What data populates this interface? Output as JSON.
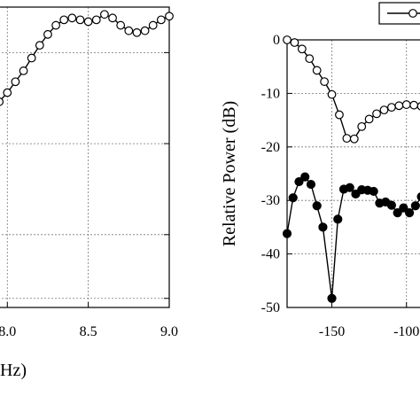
{
  "chart_data": [
    {
      "type": "line",
      "title": "",
      "xlabel": "Hz)",
      "ylabel": "",
      "xlim": [
        7.9,
        9.0
      ],
      "ylim": [
        -1.4,
        0.25
      ],
      "grid": true,
      "x_ticks": [
        8.0,
        8.5,
        9.0
      ],
      "x_tick_labels": [
        "8.0",
        "8.5",
        "9.0"
      ],
      "y_gridlines": [
        0,
        -0.5,
        -1,
        -1.35
      ],
      "series": [
        {
          "marker": "open-circle",
          "x": [
            7.9,
            7.95,
            8.0,
            8.05,
            8.1,
            8.15,
            8.2,
            8.25,
            8.3,
            8.35,
            8.4,
            8.45,
            8.5,
            8.55,
            8.6,
            8.65,
            8.7,
            8.75,
            8.8,
            8.85,
            8.9,
            8.95,
            9.0
          ],
          "y": [
            -0.3,
            -0.27,
            -0.22,
            -0.16,
            -0.1,
            -0.03,
            0.04,
            0.1,
            0.15,
            0.18,
            0.19,
            0.18,
            0.17,
            0.18,
            0.21,
            0.19,
            0.15,
            0.12,
            0.11,
            0.12,
            0.15,
            0.18,
            0.2
          ]
        }
      ]
    },
    {
      "type": "line",
      "title": "",
      "xlabel": "",
      "ylabel": "Relative Power (dB)",
      "xlim": [
        -180,
        -85
      ],
      "ylim": [
        -50,
        0
      ],
      "grid": true,
      "legend": "top-right",
      "x_ticks": [
        -150,
        -100
      ],
      "x_tick_labels": [
        "-150",
        "-100"
      ],
      "y_ticks": [
        0,
        -10,
        -20,
        -30,
        -40,
        -50
      ],
      "y_tick_labels": [
        "0",
        "-10",
        "-20",
        "-30",
        "-40",
        "-50"
      ],
      "series": [
        {
          "marker": "open-circle",
          "x": [
            -180,
            -175,
            -170,
            -165,
            -160,
            -155,
            -150,
            -145,
            -140,
            -135,
            -130,
            -125,
            -120,
            -115,
            -110,
            -105,
            -100,
            -95,
            -90,
            -85
          ],
          "y": [
            0,
            -0.5,
            -1.7,
            -3.5,
            -5.7,
            -7.8,
            -10.2,
            -14,
            -18.4,
            -18.5,
            -16.2,
            -14.8,
            -13.8,
            -13.1,
            -12.6,
            -12.3,
            -12.1,
            -12.2,
            -12.4,
            -12.5
          ]
        },
        {
          "marker": "filled-circle",
          "x": [
            -180,
            -176,
            -172,
            -168,
            -164,
            -160,
            -156,
            -150,
            -146,
            -142,
            -138,
            -134,
            -130,
            -126,
            -122,
            -118,
            -114,
            -110,
            -106,
            -102,
            -98,
            -94,
            -90,
            -86
          ],
          "y": [
            -36.2,
            -29.5,
            -26.5,
            -25.6,
            -27,
            -31,
            -35,
            -48.3,
            -33.5,
            -27.9,
            -27.6,
            -28.8,
            -28,
            -28.1,
            -28.3,
            -30.5,
            -30.3,
            -30.9,
            -32.3,
            -31.4,
            -32.3,
            -31,
            -29.3,
            -30
          ]
        }
      ]
    }
  ]
}
